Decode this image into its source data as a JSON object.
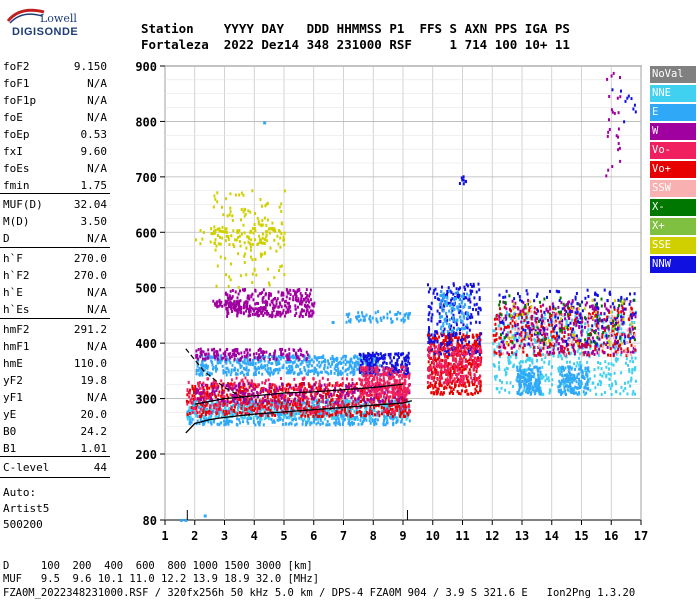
{
  "logo": {
    "top": "Lowell",
    "main": "DIGISONDE"
  },
  "header": {
    "line1": "Station    YYYY DAY   DDD HHMMSS P1  FFS S AXN PPS IGA PS",
    "line2": "Fortaleza  2022 Dez14 348 231000 RSF     1 714 100 10+ 11"
  },
  "params_group1": [
    {
      "name": "foF2",
      "value": "9.150"
    },
    {
      "name": "foF1",
      "value": "N/A"
    },
    {
      "name": "foF1p",
      "value": "N/A"
    },
    {
      "name": "foE",
      "value": "N/A"
    },
    {
      "name": "foEp",
      "value": "0.53"
    },
    {
      "name": "fxI",
      "value": "9.60"
    },
    {
      "name": "foEs",
      "value": "N/A"
    },
    {
      "name": "fmin",
      "value": "1.75"
    }
  ],
  "params_group2": [
    {
      "name": "MUF(D)",
      "value": "32.04"
    },
    {
      "name": "M(D)",
      "value": "3.50"
    },
    {
      "name": "D",
      "value": "N/A"
    }
  ],
  "params_group3": [
    {
      "name": "h`F",
      "value": "270.0"
    },
    {
      "name": "h`F2",
      "value": "270.0"
    },
    {
      "name": "h`E",
      "value": "N/A"
    },
    {
      "name": "h`Es",
      "value": "N/A"
    }
  ],
  "params_group4": [
    {
      "name": "hmF2",
      "value": "291.2"
    },
    {
      "name": "hmF1",
      "value": "N/A"
    },
    {
      "name": "hmE",
      "value": "110.0"
    },
    {
      "name": "yF2",
      "value": "19.8"
    },
    {
      "name": "yF1",
      "value": "N/A"
    },
    {
      "name": "yE",
      "value": "20.0"
    },
    {
      "name": "B0",
      "value": "24.2"
    },
    {
      "name": "B1",
      "value": "1.01"
    }
  ],
  "params_group5": [
    {
      "name": "C-level",
      "value": "44"
    }
  ],
  "auto": {
    "line1": "Auto:",
    "line2": "Artist5",
    "line3": "500200"
  },
  "legend": [
    {
      "label": "NoVal",
      "color": "#808080"
    },
    {
      "label": "NNE",
      "color": "#40d0f0"
    },
    {
      "label": "E",
      "color": "#30a8f8"
    },
    {
      "label": "W",
      "color": "#a000a0"
    },
    {
      "label": "Vo-",
      "color": "#f02060"
    },
    {
      "label": "Vo+",
      "color": "#e80000"
    },
    {
      "label": "SSW",
      "color": "#f8b0b0"
    },
    {
      "label": "X-",
      "color": "#007800"
    },
    {
      "label": "X+",
      "color": "#80c040"
    },
    {
      "label": "SSE",
      "color": "#d0d000"
    },
    {
      "label": "NNW",
      "color": "#1010e0"
    }
  ],
  "footer": {
    "line1": "D     100  200  400  600  800 1000 1500 3000 [km]",
    "line2": "MUF   9.5  9.6 10.1 11.0 12.2 13.9 18.9 32.0 [MHz]",
    "line3": "FZA0M_2022348231000.RSF / 320fx256h 50 kHz 5.0 km / DPS-4 FZA0M 904 / 3.9 S 321.6 E   Ion2Png 1.3.20"
  },
  "chart_data": {
    "type": "scatter",
    "x_ticks": [
      "1",
      "2",
      "3",
      "4",
      "5",
      "6",
      "7",
      "8",
      "9",
      "10",
      "11",
      "12",
      "13",
      "14",
      "15",
      "16",
      "17"
    ],
    "y_ticks": [
      "80",
      "200",
      "300",
      "400",
      "500",
      "600",
      "700",
      "800",
      "900"
    ],
    "xlim": [
      1,
      17
    ],
    "ylim": [
      80,
      900
    ],
    "grid": true,
    "legend_position": "right",
    "clusters": [
      {
        "series": "E",
        "f": [
          1.7,
          9.2
        ],
        "h": [
          255,
          300
        ],
        "n": 700
      },
      {
        "series": "NNE",
        "f": [
          1.7,
          9.2
        ],
        "h": [
          265,
          300
        ],
        "n": 300
      },
      {
        "series": "Vo+",
        "f": [
          1.7,
          9.2
        ],
        "h": [
          270,
          330
        ],
        "n": 650
      },
      {
        "series": "Vo-",
        "f": [
          1.7,
          9.2
        ],
        "h": [
          275,
          340
        ],
        "n": 350
      },
      {
        "series": "W",
        "f": [
          2.0,
          9.2
        ],
        "h": [
          295,
          330
        ],
        "n": 220
      },
      {
        "series": "E",
        "f": [
          2.0,
          8.2
        ],
        "h": [
          345,
          380
        ],
        "n": 520
      },
      {
        "series": "W",
        "f": [
          2.0,
          5.8
        ],
        "h": [
          372,
          392
        ],
        "n": 150
      },
      {
        "series": "NNW",
        "f": [
          7.5,
          9.2
        ],
        "h": [
          345,
          385
        ],
        "n": 180
      },
      {
        "series": "Vo-",
        "f": [
          7.5,
          9.2
        ],
        "h": [
          305,
          360
        ],
        "n": 220
      },
      {
        "series": "W",
        "f": [
          3.0,
          6.0
        ],
        "h": [
          450,
          500
        ],
        "n": 320
      },
      {
        "series": "W",
        "f": [
          2.5,
          3.5
        ],
        "h": [
          465,
          480
        ],
        "n": 40
      },
      {
        "series": "SSE",
        "f": [
          2.6,
          5.0
        ],
        "h": [
          500,
          680
        ],
        "n": 130
      },
      {
        "series": "SSE",
        "f": [
          2.0,
          5.0
        ],
        "h": [
          580,
          610
        ],
        "n": 80
      },
      {
        "series": "E",
        "f": [
          7.0,
          9.2
        ],
        "h": [
          440,
          460
        ],
        "n": 60
      },
      {
        "series": "Vo+",
        "f": [
          9.8,
          11.6
        ],
        "h": [
          310,
          420
        ],
        "n": 420
      },
      {
        "series": "NNW",
        "f": [
          9.8,
          11.6
        ],
        "h": [
          380,
          510
        ],
        "n": 220
      },
      {
        "series": "Vo-",
        "f": [
          9.8,
          11.6
        ],
        "h": [
          330,
          400
        ],
        "n": 200
      },
      {
        "series": "E",
        "f": [
          10.2,
          11.2
        ],
        "h": [
          420,
          500
        ],
        "n": 100
      },
      {
        "series": "NNE",
        "f": [
          12.0,
          16.8
        ],
        "h": [
          310,
          460
        ],
        "n": 550
      },
      {
        "series": "Vo+",
        "f": [
          12.0,
          16.8
        ],
        "h": [
          380,
          470
        ],
        "n": 300
      },
      {
        "series": "W",
        "f": [
          12.2,
          16.8
        ],
        "h": [
          380,
          480
        ],
        "n": 250
      },
      {
        "series": "E",
        "f": [
          12.8,
          13.6
        ],
        "h": [
          310,
          360
        ],
        "n": 140
      },
      {
        "series": "E",
        "f": [
          14.2,
          15.2
        ],
        "h": [
          310,
          360
        ],
        "n": 140
      },
      {
        "series": "NNW",
        "f": [
          12.2,
          16.8
        ],
        "h": [
          400,
          500
        ],
        "n": 160
      },
      {
        "series": "X-",
        "f": [
          12.2,
          16.8
        ],
        "h": [
          400,
          490
        ],
        "n": 60
      },
      {
        "series": "SSW",
        "f": [
          12.2,
          16.8
        ],
        "h": [
          380,
          460
        ],
        "n": 60
      },
      {
        "series": "SSE",
        "f": [
          12.2,
          16.8
        ],
        "h": [
          400,
          480
        ],
        "n": 40
      },
      {
        "series": "W",
        "f": [
          15.8,
          16.3
        ],
        "h": [
          700,
          900
        ],
        "n": 25
      },
      {
        "series": "NNW",
        "f": [
          15.9,
          16.8
        ],
        "h": [
          800,
          900
        ],
        "n": 10
      },
      {
        "series": "NNW",
        "f": [
          10.7,
          11.1
        ],
        "h": [
          690,
          705
        ],
        "n": 8
      }
    ],
    "trace_lower": [
      [
        1.7,
        238
      ],
      [
        2.0,
        255
      ],
      [
        2.5,
        262
      ],
      [
        3.0,
        266
      ],
      [
        4.0,
        272
      ],
      [
        5.0,
        276
      ],
      [
        6.0,
        280
      ],
      [
        7.0,
        284
      ],
      [
        8.0,
        288
      ],
      [
        9.0,
        292
      ],
      [
        9.3,
        296
      ]
    ],
    "trace_upper": [
      [
        1.7,
        390
      ],
      [
        2.3,
        350
      ],
      [
        3.0,
        320
      ],
      [
        3.7,
        300
      ]
    ],
    "trace_oblique": [
      [
        2.0,
        290
      ],
      [
        3.0,
        300
      ],
      [
        4.0,
        305
      ],
      [
        5.0,
        310
      ],
      [
        6.0,
        312
      ],
      [
        7.0,
        316
      ],
      [
        8.0,
        320
      ],
      [
        9.0,
        326
      ]
    ],
    "freq_markers": [
      1.75,
      9.15
    ],
    "noise_points": [
      {
        "f": 1.5,
        "h": 82
      },
      {
        "f": 1.65,
        "h": 82
      },
      {
        "f": 2.3,
        "h": 90
      },
      {
        "f": 4.3,
        "h": 800
      },
      {
        "f": 6.6,
        "h": 440
      }
    ]
  }
}
